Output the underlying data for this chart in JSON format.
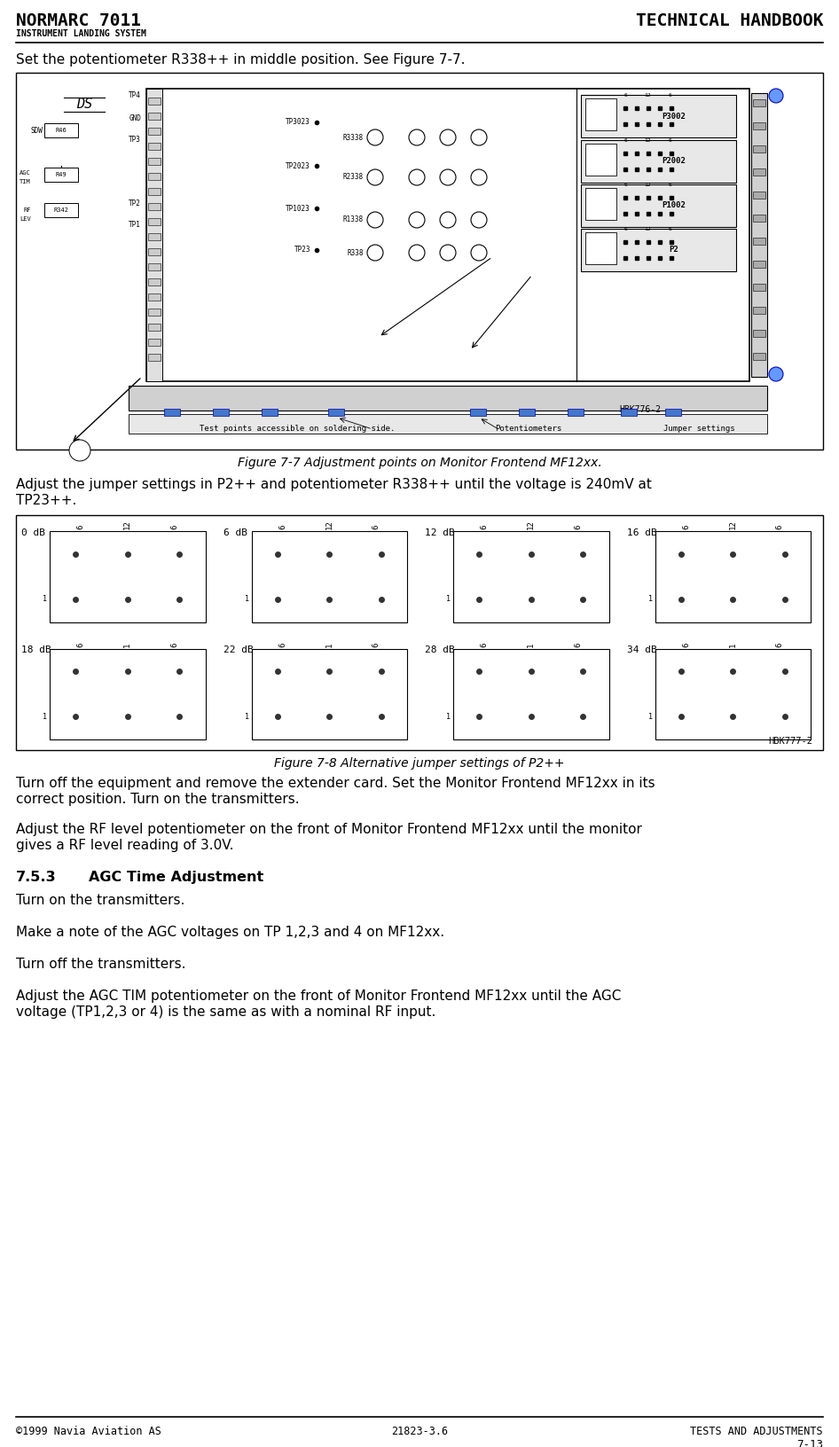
{
  "page_width": 9.46,
  "page_height": 16.32,
  "bg_color": "#ffffff",
  "header_title_left": "NORMARC 7011",
  "header_title_right": "TECHNICAL HANDBOOK",
  "header_subtitle": "INSTRUMENT LANDING SYSTEM",
  "footer_copyright": "©1999 Navia Aviation AS",
  "footer_doc": "21823-3.6",
  "footer_section": "TESTS AND ADJUSTMENTS",
  "footer_page": "7-13",
  "para1": "Set the potentiometer R338++ in middle position. See Figure 7-7.",
  "fig1_caption": "Figure 7-7 Adjustment points on Monitor Frontend MF12xx.",
  "para2_line1": "Adjust the jumper settings in P2++ and potentiometer R338++ until the voltage is 240mV at",
  "para2_line2": "TP23++.",
  "fig2_caption": "Figure 7-8 Alternative jumper settings of P2++",
  "para3_line1": "Turn off the equipment and remove the extender card. Set the Monitor Frontend MF12xx in its",
  "para3_line2": "correct position. Turn on the transmitters.",
  "para4_line1": "Adjust the RF level potentiometer on the front of Monitor Frontend MF12xx until the monitor",
  "para4_line2": "gives a RF level reading of 3.0V.",
  "section_num": "7.5.3",
  "section_title": "AGC Time Adjustment",
  "para5": "Turn on the transmitters.",
  "para6": "Make a note of the AGC voltages on TP 1,2,3 and 4 on MF12xx.",
  "para7": "Turn off the transmitters.",
  "para8_line1": "Adjust the AGC TIM potentiometer on the front of Monitor Frontend MF12xx until the AGC",
  "para8_line2": "voltage (TP1,2,3 or 4) is the same as with a nominal RF input."
}
